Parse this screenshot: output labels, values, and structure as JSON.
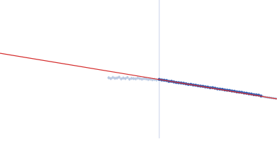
{
  "chart_data": {
    "type": "scatter",
    "xlim": [
      0,
      100
    ],
    "ylim": [
      0,
      50
    ],
    "vline": {
      "x": 57.5,
      "color": "#c9d1e8"
    },
    "fit": {
      "color": "#d42a2a",
      "x": [
        0,
        100
      ],
      "y": [
        30.75,
        14.25
      ]
    },
    "series": [
      {
        "color": "#b9c9e2",
        "x": [
          39.25,
          40,
          40.75,
          41.5,
          42.25,
          43,
          43.75,
          44.5,
          45.25,
          46,
          46.75,
          47.5,
          48.25,
          49,
          49.75,
          50.5,
          51.25,
          52,
          52.75,
          53.5,
          54.25,
          55,
          55.75,
          56.5
        ],
        "values": [
          21.9,
          21.6,
          22.0,
          21.7,
          21.8,
          22.1,
          21.5,
          21.8,
          21.6,
          22.0,
          21.4,
          21.7,
          21.6,
          21.5,
          21.8,
          21.6,
          21.4,
          21.6,
          21.5,
          21.3,
          21.4,
          21.2,
          21.3,
          21.1
        ],
        "errors": [
          0.6,
          0.6,
          0.6,
          0.6,
          0.6,
          0.6,
          0.6,
          0.6,
          0.6,
          0.6,
          0.6,
          0.6,
          0.6,
          0.6,
          0.6,
          0.6,
          0.6,
          0.6,
          0.6,
          0.6,
          0.6,
          0.6,
          0.6,
          0.6
        ]
      },
      {
        "color": "#3a62b2",
        "x": [
          57.5,
          58.38,
          59.25,
          60.13,
          61,
          61.88,
          62.75,
          63.63,
          64.5,
          65.38,
          66.25,
          67.13,
          68,
          68.88,
          69.75,
          70.63,
          71.5,
          72.38,
          73.25,
          74.13,
          75,
          75.88,
          76.75,
          77.63,
          78.5,
          79.38,
          80.25,
          81.13,
          82,
          82.88,
          83.75,
          84.63,
          85.5,
          86.38,
          87.25,
          88.13,
          89,
          89.88,
          90.75,
          91.63,
          92.5,
          93.38,
          94.25
        ],
        "values": [
          21.3,
          21.1,
          21.0,
          20.9,
          20.6,
          20.6,
          20.4,
          20.2,
          20.1,
          20.0,
          19.9,
          19.7,
          19.5,
          19.5,
          19.3,
          19.2,
          19.0,
          18.9,
          18.8,
          18.6,
          18.5,
          18.3,
          18.3,
          18.1,
          17.9,
          17.8,
          17.7,
          17.5,
          17.4,
          17.3,
          17.1,
          17.0,
          16.8,
          16.7,
          16.6,
          16.4,
          16.3,
          16.1,
          16.0,
          15.8,
          15.7,
          15.6,
          15.3
        ]
      },
      {
        "color": "#b9c9e2",
        "x": [
          95,
          95.75,
          96.5,
          97.25,
          98,
          98.75,
          99.5
        ],
        "values": [
          15.1,
          14.9,
          14.8,
          14.7,
          14.6,
          14.5,
          14.4
        ],
        "errors": [
          0.4,
          0.4,
          0.4,
          0.4,
          0.4,
          0.4,
          0.4
        ]
      }
    ]
  }
}
